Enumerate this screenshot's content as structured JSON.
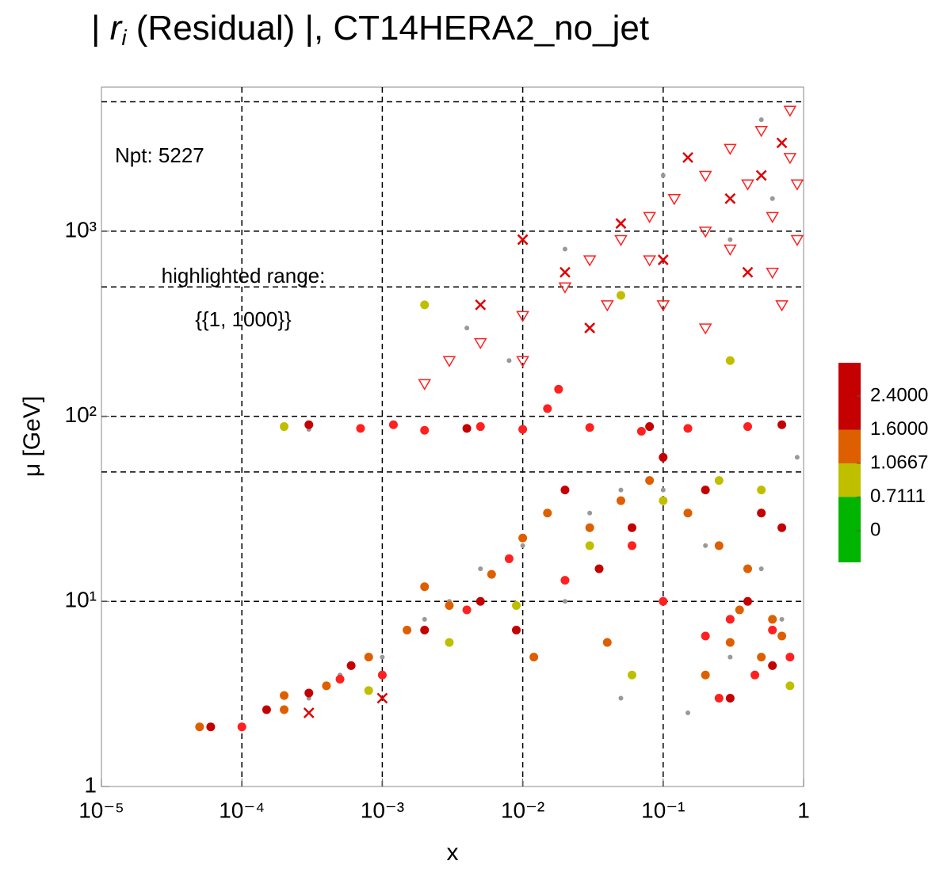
{
  "chart_data": {
    "type": "scatter",
    "title": {
      "prefix": "| ",
      "symbol": "r",
      "subscript": "i",
      "rest": " (Residual) |, CT14HERA2_no_jet"
    },
    "x_label": "x",
    "y_label": "μ [GeV]",
    "log_x": true,
    "log_y": true,
    "grid": true,
    "xlim": [
      1e-05,
      1
    ],
    "ylim": [
      1,
      6000
    ],
    "xticks": [
      {
        "value": 1e-05,
        "label": "10⁻⁵"
      },
      {
        "value": 0.0001,
        "label": "10⁻⁴"
      },
      {
        "value": 0.001,
        "label": "10⁻³"
      },
      {
        "value": 0.01,
        "label": "10⁻²"
      },
      {
        "value": 0.1,
        "label": "10⁻¹"
      },
      1
    ],
    "yticks": [
      1,
      {
        "value": 10,
        "label": "10¹"
      },
      {
        "value": 100,
        "label": "10²"
      },
      {
        "value": 1000,
        "label": "10³"
      }
    ],
    "xgrid": [
      0.0001,
      0.001,
      0.01,
      0.1
    ],
    "ygrid": [
      10,
      50,
      100,
      500,
      1000,
      5000
    ],
    "annotations": [
      "Npt: 5227",
      "highlighted range:",
      "{{1, 1000}}"
    ],
    "colorbar": {
      "ticks": [
        {
          "value": 2.4,
          "label": "2.4000"
        },
        {
          "value": 1.6,
          "label": "1.6000"
        },
        {
          "value": 1.0667,
          "label": "1.0667"
        },
        {
          "value": 0.7111,
          "label": "0.7111"
        },
        0
      ],
      "colors": [
        "#c40000",
        "#dd5f00",
        "#bfbf00",
        "#00b400"
      ]
    },
    "series": [
      {
        "color": "#999999",
        "marker": "dot",
        "x": [
          0.0001,
          0.0003,
          0.001,
          0.003,
          0.01,
          0.03,
          0.05,
          0.2,
          0.5,
          0.7,
          0.3,
          0.002,
          0.0005,
          0.005,
          0.02,
          0.1,
          0.9,
          0.004,
          0.02,
          0.1,
          0.5,
          0.6,
          0.008,
          0.3,
          0.0003,
          0.05,
          0.15
        ],
        "y": [
          2.1,
          3,
          5,
          10,
          20,
          30,
          40,
          20,
          15,
          8,
          5,
          8,
          4,
          15,
          10,
          40,
          60,
          300,
          800,
          2000,
          4000,
          1500,
          200,
          900,
          85,
          3,
          2.5
        ]
      },
      {
        "color": "#dd5f00",
        "marker": "circle",
        "x": [
          5e-05,
          0.0002,
          0.0004,
          0.0008,
          0.0015,
          0.003,
          0.006,
          0.01,
          0.015,
          0.03,
          0.05,
          0.08,
          0.15,
          0.25,
          0.4,
          0.6,
          0.3,
          0.2,
          0.5,
          0.04,
          0.0002,
          0.002,
          0.012,
          0.7,
          0.35
        ],
        "y": [
          2.1,
          2.6,
          3.5,
          5,
          7,
          9.5,
          14,
          22,
          30,
          25,
          35,
          45,
          30,
          20,
          15,
          8,
          6,
          4,
          5,
          6,
          3.1,
          12,
          5,
          6.5,
          9
        ]
      },
      {
        "color": "#ff2020",
        "marker": "circle",
        "x": [
          0.0001,
          0.0005,
          0.001,
          0.004,
          0.008,
          0.02,
          0.06,
          0.1,
          0.3,
          0.6,
          0.8,
          0.45,
          0.2,
          0.0007,
          0.002,
          0.005,
          0.01,
          0.03,
          0.07,
          0.15,
          0.4,
          0.015,
          0.018,
          0.0012,
          0.25
        ],
        "y": [
          2.1,
          3.8,
          4,
          9,
          17,
          13,
          20,
          10,
          8,
          7,
          5,
          4,
          6.5,
          86,
          84,
          88,
          85,
          87,
          83,
          86,
          88,
          110,
          140,
          90,
          3
        ]
      },
      {
        "color": "#c40000",
        "marker": "circle",
        "x": [
          6e-05,
          0.00015,
          0.0003,
          0.0006,
          0.002,
          0.005,
          0.02,
          0.06,
          0.1,
          0.2,
          0.5,
          0.7,
          0.4,
          0.6,
          0.3,
          0.0003,
          0.004,
          0.08,
          0.7,
          0.009,
          0.035
        ],
        "y": [
          2.1,
          2.6,
          3.2,
          4.5,
          7,
          10,
          40,
          25,
          60,
          40,
          30,
          25,
          10,
          4.5,
          3,
          90,
          86,
          88,
          90,
          7,
          15
        ]
      },
      {
        "color": "#bfbf00",
        "marker": "circle",
        "x": [
          0.0008,
          0.003,
          0.009,
          0.03,
          0.1,
          0.25,
          0.5,
          0.8,
          0.06,
          0.0002,
          0.002,
          0.05,
          0.3
        ],
        "y": [
          3.3,
          6,
          9.5,
          20,
          35,
          45,
          40,
          3.5,
          4,
          88,
          400,
          450,
          200
        ]
      },
      {
        "color": "#ff2020",
        "marker": "triangle-open",
        "x": [
          0.002,
          0.003,
          0.005,
          0.01,
          0.02,
          0.03,
          0.05,
          0.08,
          0.12,
          0.2,
          0.3,
          0.5,
          0.8,
          0.01,
          0.04,
          0.08,
          0.2,
          0.4,
          0.8,
          0.1,
          0.3,
          0.6,
          0.9,
          0.2,
          0.6,
          0.9,
          0.7
        ],
        "y": [
          150,
          200,
          250,
          350,
          500,
          700,
          900,
          1200,
          1500,
          2000,
          2800,
          3500,
          4500,
          200,
          400,
          700,
          1000,
          1800,
          2500,
          400,
          800,
          1200,
          1800,
          300,
          600,
          900,
          400
        ]
      },
      {
        "color": "#e00000",
        "marker": "cross",
        "x": [
          0.005,
          0.02,
          0.05,
          0.1,
          0.3,
          0.15,
          0.4,
          0.7,
          0.03,
          0.01,
          0.5,
          0.0003,
          0.001
        ],
        "y": [
          400,
          600,
          1100,
          700,
          1500,
          2500,
          600,
          3000,
          300,
          900,
          2000,
          2.5,
          3
        ]
      }
    ]
  }
}
